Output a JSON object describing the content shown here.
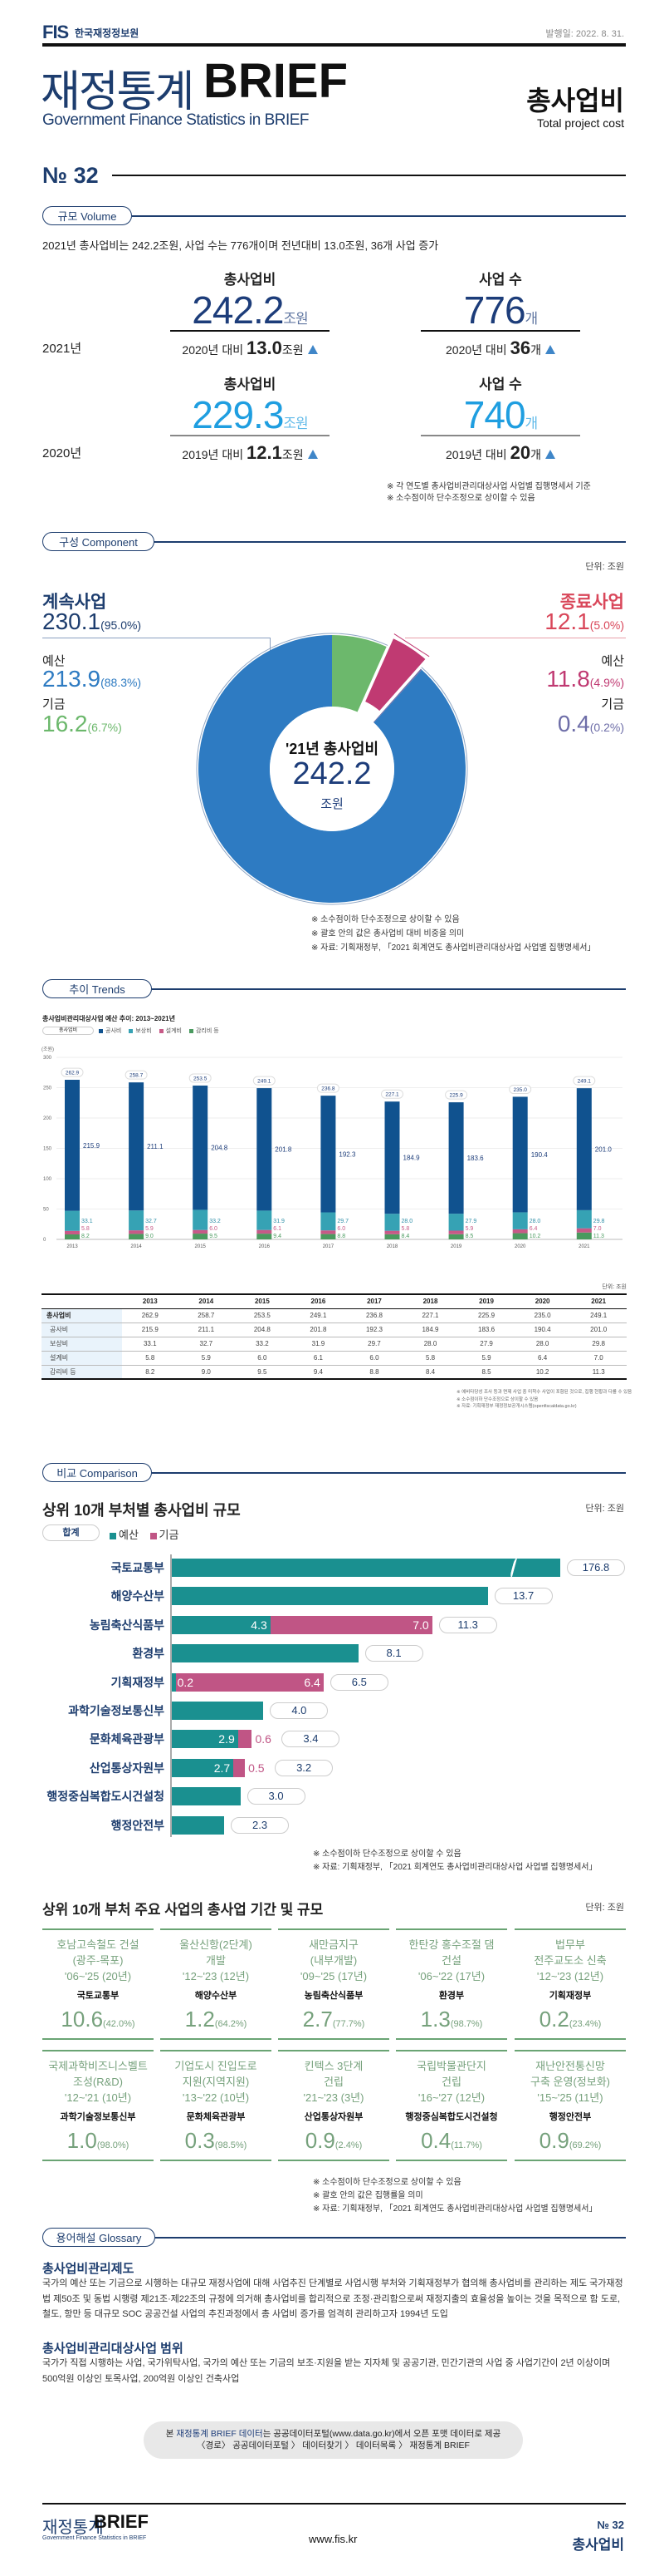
{
  "header": {
    "logo": "FIS",
    "org": "한국재정정보원",
    "date": "발행일: 2022. 8. 31.",
    "title_kr": "재정통계",
    "title_en": "BRIEF",
    "subtitle": "Government Finance Statistics in BRIEF",
    "topic": "총사업비",
    "topic_en": "Total project cost",
    "issue": "№ 32"
  },
  "volume": {
    "section": "규모 Volume",
    "summary": "2021년 총사업비는 242.2조원, 사업 수는 776개이며 전년대비 13.0조원, 36개 사업 증가",
    "rows": [
      {
        "year": "2021년",
        "cost_label": "총사업비",
        "cost": "242.2",
        "cost_unit": "조원",
        "cost_cmp_prefix": "2020년 대비",
        "cost_cmp": "13.0",
        "cost_cmp_unit": "조원",
        "count_label": "사업 수",
        "count": "776",
        "count_unit": "개",
        "count_cmp_prefix": "2020년 대비",
        "count_cmp": "36",
        "count_cmp_unit": "개",
        "color": "#1d3d7a"
      },
      {
        "year": "2020년",
        "cost_label": "총사업비",
        "cost": "229.3",
        "cost_unit": "조원",
        "cost_cmp_prefix": "2019년 대비",
        "cost_cmp": "12.1",
        "cost_cmp_unit": "조원",
        "count_label": "사업 수",
        "count": "740",
        "count_unit": "개",
        "count_cmp_prefix": "2019년 대비",
        "count_cmp": "20",
        "count_cmp_unit": "개",
        "color": "#1f9ee0"
      }
    ],
    "trend_icon": "triangle-up-icon",
    "notes": [
      "※ 각 연도별 총사업비관리대상사업 사업별 집행명세서 기준",
      "※ 소수점이하 단수조정으로 상이할 수 있음"
    ]
  },
  "component": {
    "section": "구성 Component",
    "unit": "단위: 조원",
    "left": {
      "title": "계속사업",
      "value": "230.1",
      "pct": "(95.0%)",
      "budget_label": "예산",
      "budget": "213.9",
      "budget_pct": "(88.3%)",
      "fund_label": "기금",
      "fund": "16.2",
      "fund_pct": "(6.7%)"
    },
    "right": {
      "title": "종료사업",
      "value": "12.1",
      "pct": "(5.0%)",
      "budget_label": "예산",
      "budget": "11.8",
      "budget_pct": "(4.9%)",
      "fund_label": "기금",
      "fund": "0.4",
      "fund_pct": "(0.2%)"
    },
    "notes": [
      "※ 소수점이하 단수조정으로 상이할 수 있음",
      "※ 괄호 안의 값은 총사업비 대비 비중을 의미",
      "※ 자료: 기획재정부, 「2021 회계연도 총사업비관리대상사업 사업별 집행명세서」"
    ]
  },
  "trends": {
    "section": "추이 Trends",
    "table_unit": "단위: 조원",
    "notes": [
      "※ 예비타당성 조사 등과 면제 사업 중 미착수 사업이 포함된 것으로, 집행 현황과 다를 수 있음",
      "※ 소수점이하 단수조정으로 상이할 수 있음",
      "※ 자료: 기획재정부 재정정보공개시스템(openfiscaldata.go.kr)"
    ]
  },
  "comparison": {
    "section": "비교 Comparison",
    "title": "상위 10개 부처별 총사업비 규모",
    "unit": "단위: 조원",
    "total_label": "합계",
    "notes": [
      "※ 소수점이하 단수조정으로 상이할 수 있음",
      "※ 자료: 기획재정부, 「2021 회계연도 총사업비관리대상사업 사업별 집행명세서」"
    ],
    "projects_title": "상위 10개 부처 주요 사업의 총사업 기간 및 규모",
    "projects_unit": "단위: 조원",
    "projects": [
      {
        "line1": "호남고속철도 건설",
        "line2": "(광주-목포)",
        "period": "'06~'25 (20년)",
        "ministry": "국토교통부",
        "value": "10.6",
        "rate": "(42.0%)"
      },
      {
        "line1": "울산신항(2단계)",
        "line2": "개발",
        "period": "'12~'23 (12년)",
        "ministry": "해양수산부",
        "value": "1.2",
        "rate": "(64.2%)"
      },
      {
        "line1": "새만금지구",
        "line2": "(내부개발)",
        "period": "'09~'25 (17년)",
        "ministry": "농림축산식품부",
        "value": "2.7",
        "rate": "(77.7%)"
      },
      {
        "line1": "한탄강 홍수조절 댐",
        "line2": "건설",
        "period": "'06~'22 (17년)",
        "ministry": "환경부",
        "value": "1.3",
        "rate": "(98.7%)"
      },
      {
        "line1": "법무부",
        "line2": "전주교도소 신축",
        "period": "'12~'23 (12년)",
        "ministry": "기획재정부",
        "value": "0.2",
        "rate": "(23.4%)"
      },
      {
        "line1": "국제과학비즈니스벨트",
        "line2": "조성(R&D)",
        "period": "'12~'21 (10년)",
        "ministry": "과학기술정보통신부",
        "value": "1.0",
        "rate": "(98.0%)"
      },
      {
        "line1": "기업도시 진입도로",
        "line2": "지원(지역지원)",
        "period": "'13~'22 (10년)",
        "ministry": "문화체육관광부",
        "value": "0.3",
        "rate": "(98.5%)"
      },
      {
        "line1": "킨텍스 3단계",
        "line2": "건립",
        "period": "'21~'23 (3년)",
        "ministry": "산업통상자원부",
        "value": "0.9",
        "rate": "(2.4%)"
      },
      {
        "line1": "국립박물관단지",
        "line2": "건립",
        "period": "'16~'27 (12년)",
        "ministry": "행정중심복합도시건설청",
        "value": "0.4",
        "rate": "(11.7%)"
      },
      {
        "line1": "재난안전통신망",
        "line2": "구축 운영(정보화)",
        "period": "'15~'25 (11년)",
        "ministry": "행정안전부",
        "value": "0.9",
        "rate": "(69.2%)"
      }
    ],
    "projects_notes": [
      "※ 소수점이하 단수조정으로 상이할 수 있음",
      "※ 괄호 안의 값은 집행률을 의미",
      "※ 자료: 기획재정부, 「2021 회계연도 총사업비관리대상사업 사업별 집행명세서」"
    ]
  },
  "glossary": {
    "section": "용어해설 Glossary",
    "items": [
      {
        "title": "총사업비관리제도",
        "text": "국가의 예산 또는 기금으로 시행하는 대규모 재정사업에 대해 사업추진 단계별로 사업시행 부처와 기획재정부가 협의해 총사업비를 관리하는 제도 국가재정법 제50조 및 동법 시행령 제21조·제22조의 규정에 의거해 총사업비를 합리적으로 조정·관리함으로써 재정지출의 효율성을 높이는 것을 목적으로 함 도로, 철도, 항만 등 대규모 SOC 공공건설 사업의 추진과정에서 총 사업비 증가를 엄격히 관리하고자 1994년 도입"
      },
      {
        "title": "총사업비관리대상사업 범위",
        "text": "국가가 직접 시행하는 사업, 국가위탁사업, 국가의 예산 또는 기금의 보조·지원을 받는 지자체 및 공공기관, 민간기관의 사업 중 사업기간이 2년 이상이며 500억원 이상인 토목사업, 200억원 이상인 건축사업"
      }
    ]
  },
  "notice": {
    "pre": "본 ",
    "highlight": "재정통계 BRIEF 데이터",
    "post": "는 공공데이터포털(www.data.go.kr)에서 오픈 포맷 데이터로 제공",
    "path": "〈경로〉 공공데이터포털 〉 데이터찾기 〉 데이터목록 〉 재정통계 BRIEF"
  },
  "footer": {
    "title_kr": "재정통계",
    "title_en": "BRIEF",
    "subtitle": "Government Finance Statistics in BRIEF",
    "url": "www.fis.kr",
    "issue": "№ 32",
    "topic": "총사업비"
  },
  "colors": {
    "navy": "#1d3d6e",
    "donut_budget": "#2e7bc2",
    "donut_fund": "#6cb86c",
    "ended_budget": "#c03a72",
    "ended_fund": "#6e6ea8",
    "ended_title": "#d9475a",
    "bar_construction": "#10528f",
    "bar_compensation": "#36a2b4",
    "bar_design": "#c75a87",
    "bar_supervision": "#4a9a5f",
    "cmp_budget": "#1a9090",
    "cmp_fund": "#c05585",
    "card_green": "#76a17c"
  },
  "chart_data": [
    {
      "type": "pie",
      "style": "donut",
      "center_label": "'21년 총사업비",
      "center_value": "242.2",
      "center_unit": "조원",
      "slices": [
        {
          "name": "계속사업 기금",
          "value": 16.2,
          "pct": 6.7
        },
        {
          "name": "종료사업 예산",
          "value": 11.8,
          "pct": 4.9,
          "exploded": true
        },
        {
          "name": "종료사업 기금",
          "value": 0.4,
          "pct": 0.2
        },
        {
          "name": "계속사업 예산",
          "value": 213.9,
          "pct": 88.3
        }
      ]
    },
    {
      "type": "bar",
      "stacked": true,
      "title": "총사업비관리대상사업 예산 추이: 2013~2021년",
      "ylabel": "(조원)",
      "ylim": [
        0,
        300
      ],
      "yticks": [
        0,
        50,
        100,
        150,
        200,
        250,
        300
      ],
      "grid": true,
      "legend": "top-left",
      "categories": [
        "2013",
        "2014",
        "2015",
        "2016",
        "2017",
        "2018",
        "2019",
        "2020",
        "2021"
      ],
      "total_name": "총사업비",
      "totals": [
        262.9,
        258.7,
        253.5,
        249.1,
        236.8,
        227.1,
        225.9,
        235.0,
        249.1
      ],
      "series": [
        {
          "name": "공사비",
          "values": [
            215.9,
            211.1,
            204.8,
            201.8,
            192.3,
            184.9,
            183.6,
            190.4,
            201.0
          ]
        },
        {
          "name": "보상비",
          "values": [
            33.1,
            32.7,
            33.2,
            31.9,
            29.7,
            28.0,
            27.9,
            28.0,
            29.8
          ]
        },
        {
          "name": "설계비",
          "values": [
            5.8,
            5.9,
            6.0,
            6.1,
            6.0,
            5.8,
            5.9,
            6.4,
            7.0
          ]
        },
        {
          "name": "감리비 등",
          "values": [
            8.2,
            9.0,
            9.5,
            9.4,
            8.8,
            8.4,
            8.5,
            10.2,
            11.3
          ]
        }
      ]
    },
    {
      "type": "bar",
      "orientation": "horizontal",
      "stacked": true,
      "axis_break_on_first": true,
      "categories": [
        "국토교통부",
        "해양수산부",
        "농림축산식품부",
        "환경부",
        "기획재정부",
        "과학기술정보통신부",
        "문화체육관광부",
        "산업통상자원부",
        "행정중심복합도시건설청",
        "행정안전부"
      ],
      "series": [
        {
          "name": "예산",
          "values": [
            176.8,
            13.7,
            4.3,
            8.1,
            0.2,
            4.0,
            2.9,
            2.7,
            3.0,
            2.3
          ]
        },
        {
          "name": "기금",
          "values": [
            0,
            0,
            7.0,
            0,
            6.4,
            0,
            0.6,
            0.5,
            0,
            0
          ]
        }
      ],
      "totals": [
        176.8,
        13.7,
        11.3,
        8.1,
        6.5,
        4.0,
        3.4,
        3.2,
        3.0,
        2.3
      ]
    }
  ]
}
